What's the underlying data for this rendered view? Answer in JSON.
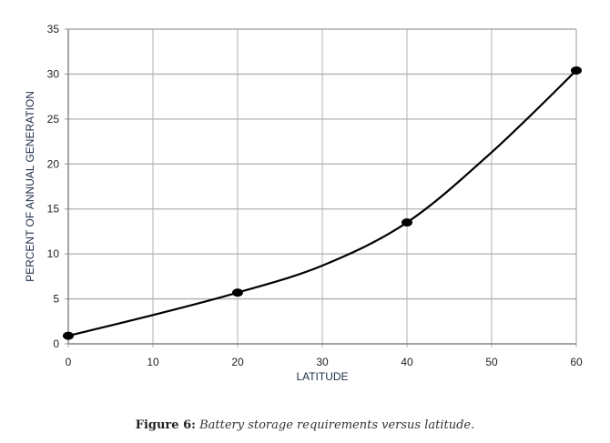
{
  "chart_data": {
    "type": "line",
    "title": "",
    "xlabel": "LATITUDE",
    "ylabel": "PERCENT OF ANNUAL GENERATION",
    "xlim": [
      0,
      60
    ],
    "ylim": [
      0,
      35
    ],
    "xticks": [
      0,
      10,
      20,
      30,
      40,
      50,
      60
    ],
    "yticks": [
      0,
      5,
      10,
      15,
      20,
      25,
      30,
      35
    ],
    "grid": true,
    "series": [
      {
        "name": "Battery storage",
        "x": [
          0,
          20,
          40,
          60
        ],
        "y": [
          0.9,
          5.7,
          13.5,
          30.4
        ],
        "curve_x": [
          0,
          10,
          20,
          30,
          40,
          50,
          60
        ],
        "curve_y": [
          0.9,
          3.2,
          5.7,
          8.7,
          13.5,
          21.3,
          30.4
        ],
        "color": "#000000"
      }
    ]
  },
  "caption": {
    "label": "Figure 6:",
    "text": "Battery storage requirements versus latitude."
  }
}
